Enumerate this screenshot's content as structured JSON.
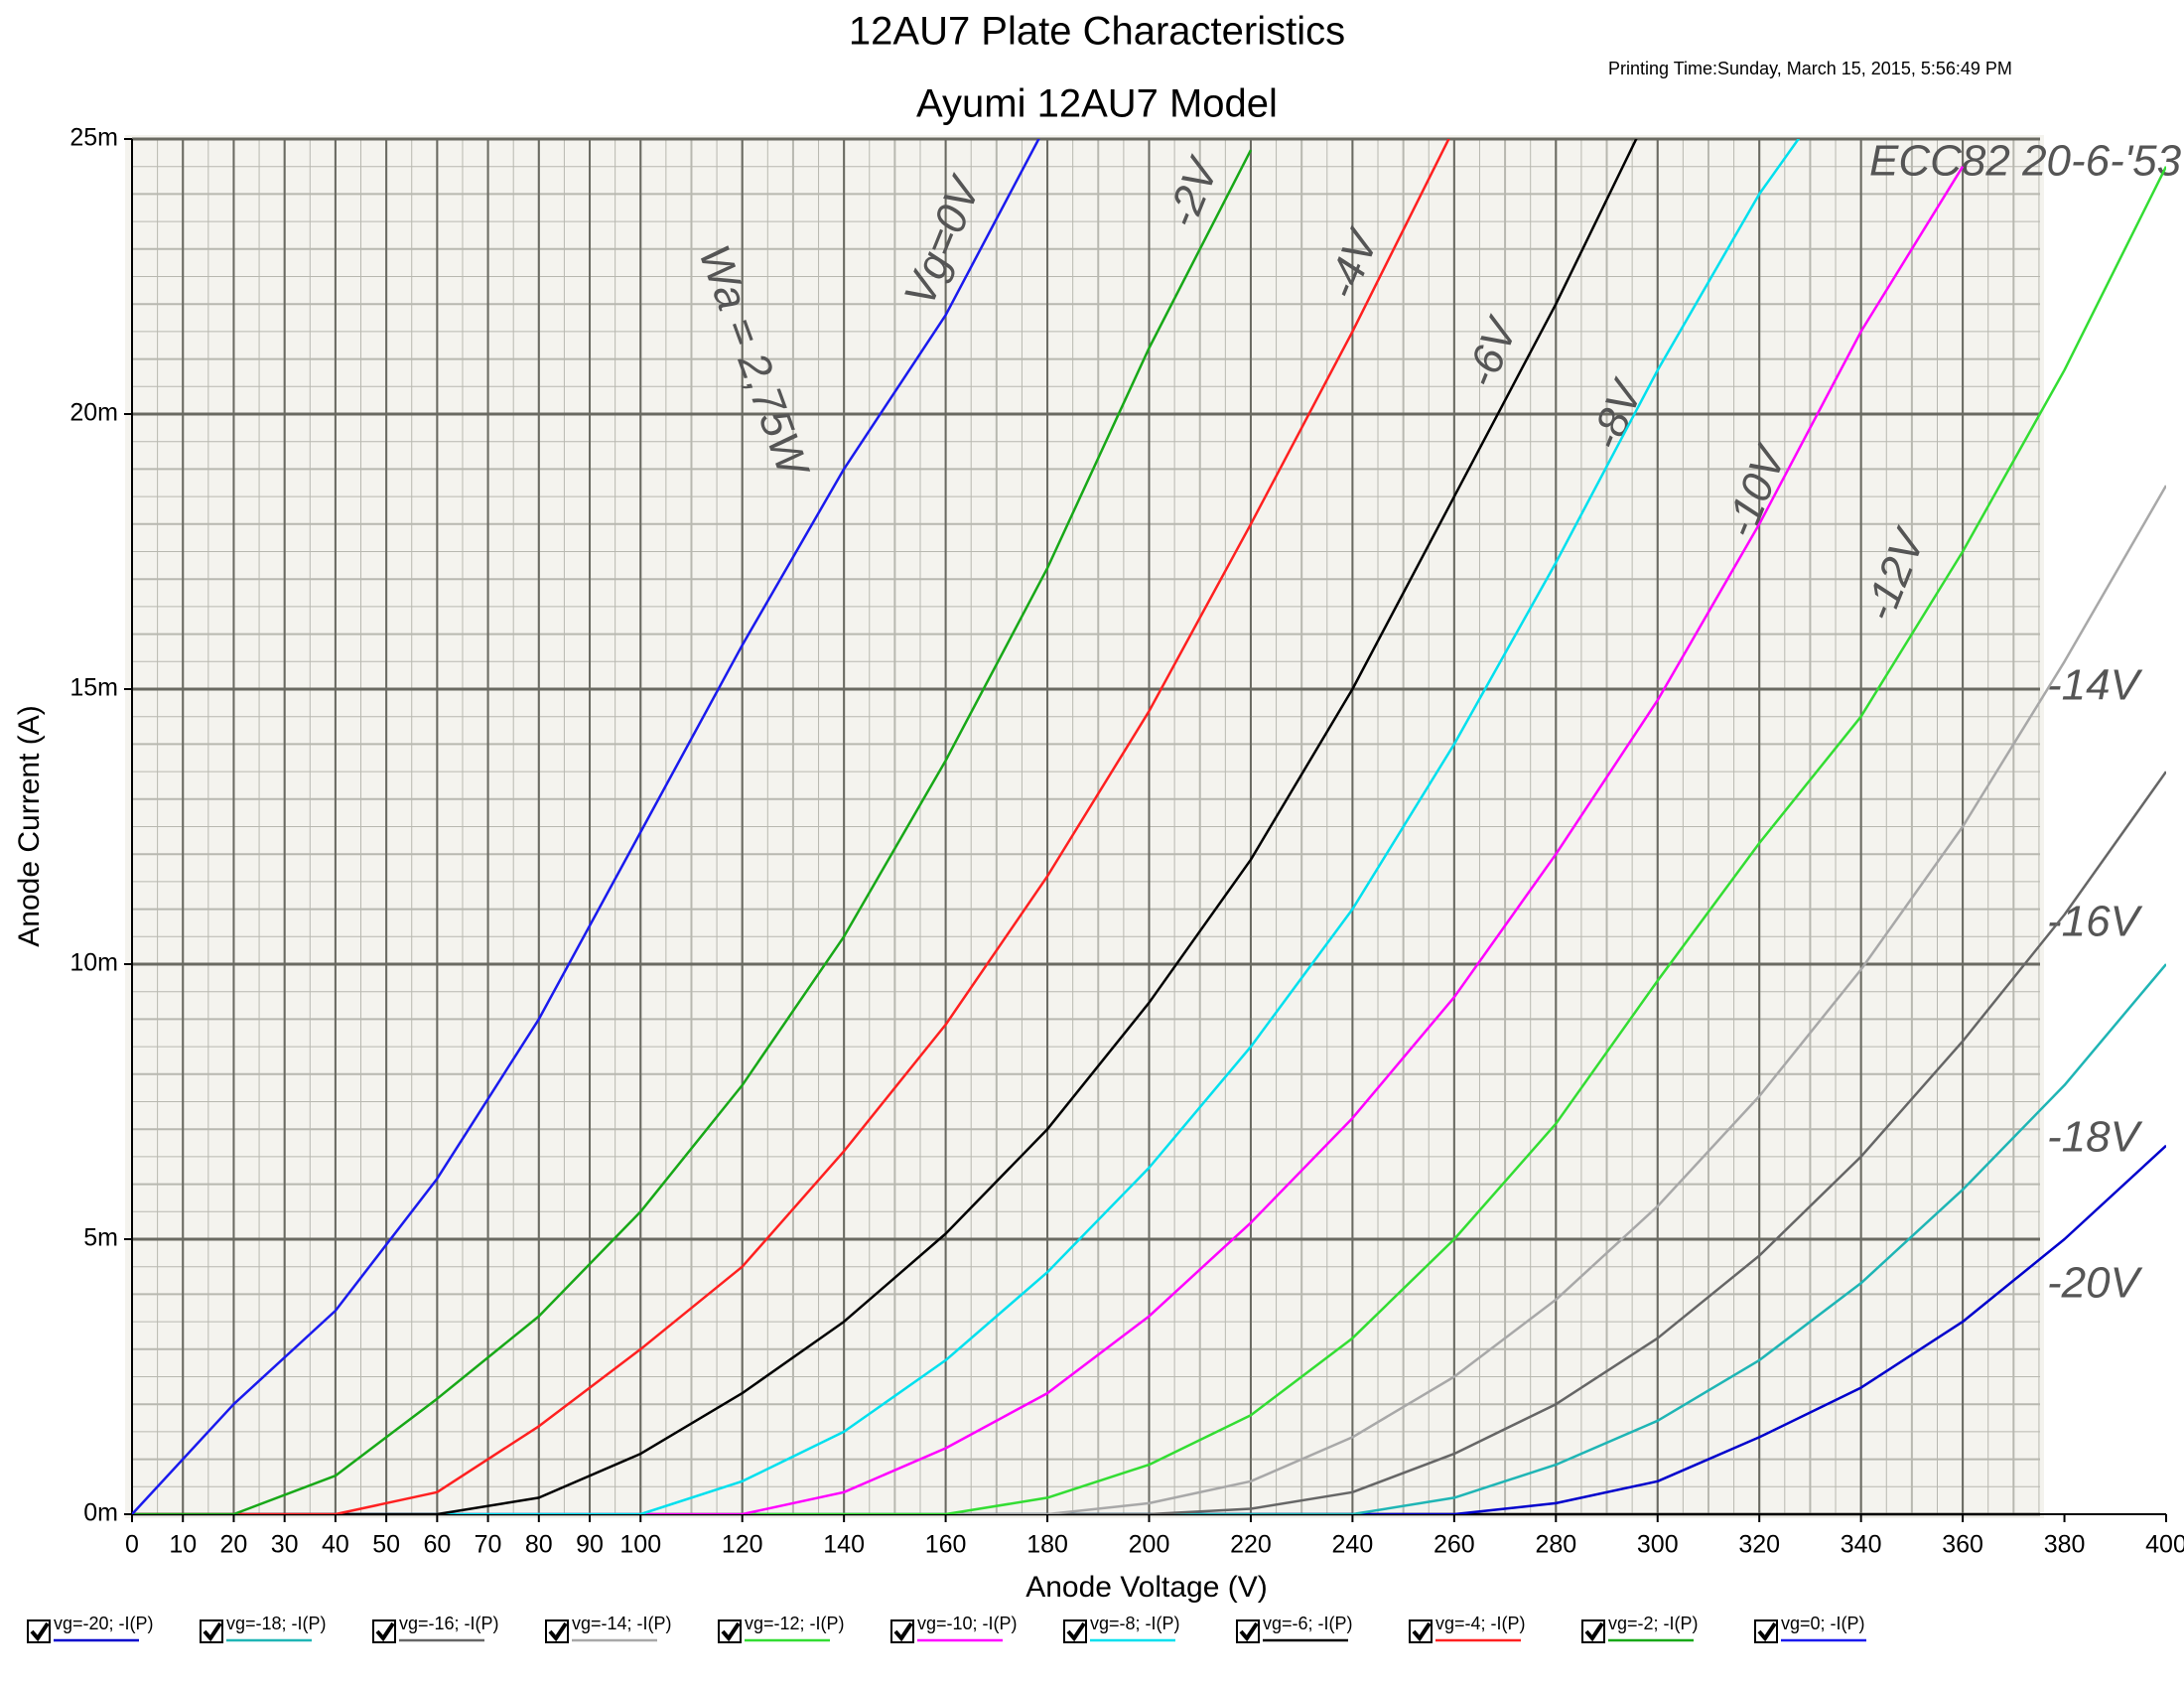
{
  "chart_data": {
    "type": "line",
    "title": "12AU7 Plate Characteristics",
    "subtitle": "Ayumi 12AU7 Model",
    "printing_time": "Printing Time:Sunday, March 15, 2015, 5:56:49 PM",
    "x_label": "Anode Voltage (V)",
    "y_label": "Anode Current (A)",
    "x": [
      0,
      20,
      40,
      60,
      80,
      100,
      120,
      140,
      160,
      180,
      200,
      220,
      240,
      260,
      280,
      300,
      320,
      340,
      360,
      380,
      400
    ],
    "series": [
      {
        "name": "vg=-20; -I(P)",
        "color": "#0000cc",
        "values": [
          0,
          0,
          0,
          0,
          0,
          0,
          0,
          0,
          0,
          0,
          0,
          0,
          0,
          0,
          0.0002,
          0.0006,
          0.0014,
          0.0023,
          0.0035,
          0.005,
          0.0067
        ]
      },
      {
        "name": "vg=-18; -I(P)",
        "color": "#1fb5b5",
        "values": [
          0,
          0,
          0,
          0,
          0,
          0,
          0,
          0,
          0,
          0,
          0,
          0,
          0,
          0.0003,
          0.0009,
          0.0017,
          0.0028,
          0.0042,
          0.0059,
          0.0078,
          0.01
        ]
      },
      {
        "name": "vg=-16; -I(P)",
        "color": "#666666",
        "values": [
          0,
          0,
          0,
          0,
          0,
          0,
          0,
          0,
          0,
          0,
          0,
          0.0001,
          0.0004,
          0.0011,
          0.002,
          0.0032,
          0.0047,
          0.0065,
          0.0086,
          0.0109,
          0.0135
        ]
      },
      {
        "name": "vg=-14; -I(P)",
        "color": "#a8a8a8",
        "values": [
          0,
          0,
          0,
          0,
          0,
          0,
          0,
          0,
          0,
          0,
          0.0002,
          0.0006,
          0.0014,
          0.0025,
          0.0039,
          0.0056,
          0.0076,
          0.0099,
          0.0125,
          0.0155,
          0.0187
        ]
      },
      {
        "name": "vg=-12; -I(P)",
        "color": "#33dd33",
        "values": [
          0,
          0,
          0,
          0,
          0,
          0,
          0,
          0,
          0,
          0.0003,
          0.0009,
          0.0018,
          0.0032,
          0.005,
          0.0071,
          0.0097,
          0.0122,
          0.0145,
          0.0175,
          0.0208,
          0.0245
        ]
      },
      {
        "name": "vg=-10; -I(P)",
        "color": "#ff00ff",
        "values": [
          0,
          0,
          0,
          0,
          0,
          0,
          0,
          0.0004,
          0.0012,
          0.0022,
          0.0036,
          0.0053,
          0.0072,
          0.0094,
          0.012,
          0.0148,
          0.018,
          0.0215,
          0.0245,
          null,
          null
        ]
      },
      {
        "name": "vg=-8; -I(P)",
        "color": "#00e0ee",
        "values": [
          0,
          0,
          0,
          0,
          0,
          0,
          0.0006,
          0.0015,
          0.0028,
          0.0044,
          0.0063,
          0.0085,
          0.011,
          0.014,
          0.0173,
          0.0208,
          0.024,
          0.0266,
          null,
          null,
          null
        ]
      },
      {
        "name": "vg=-6; -I(P)",
        "color": "#000000",
        "values": [
          0,
          0,
          0,
          0,
          0.0003,
          0.0011,
          0.0022,
          0.0035,
          0.0051,
          0.007,
          0.0093,
          0.0119,
          0.015,
          0.0185,
          0.022,
          0.0258,
          null,
          null,
          null,
          null,
          null
        ]
      },
      {
        "name": "vg=-4; -I(P)",
        "color": "#ff2020",
        "values": [
          0,
          0,
          0,
          0.0004,
          0.0016,
          0.003,
          0.0045,
          0.0066,
          0.0089,
          0.0116,
          0.0146,
          0.018,
          0.0215,
          0.0252,
          null,
          null,
          null,
          null,
          null,
          null,
          null
        ]
      },
      {
        "name": "vg=-2; -I(P)",
        "color": "#18a818",
        "values": [
          0,
          0,
          0.0007,
          0.0021,
          0.0036,
          0.0055,
          0.0078,
          0.0105,
          0.0137,
          0.0172,
          0.0212,
          0.0248,
          null,
          null,
          null,
          null,
          null,
          null,
          null,
          null,
          null
        ]
      },
      {
        "name": "vg=0; -I(P)",
        "color": "#1a1aee",
        "values": [
          0,
          0.002,
          0.0037,
          0.0061,
          0.009,
          0.0124,
          0.0158,
          0.019,
          0.0218,
          0.0253,
          null,
          null,
          null,
          null,
          null,
          null,
          null,
          null,
          null,
          null,
          null
        ]
      }
    ],
    "xlim": [
      0,
      400
    ],
    "xticks": [
      0,
      10,
      20,
      30,
      40,
      50,
      60,
      70,
      80,
      90,
      100,
      120,
      140,
      160,
      180,
      200,
      220,
      240,
      260,
      280,
      300,
      320,
      340,
      360,
      380,
      400
    ],
    "ylim": [
      0,
      0.025
    ],
    "yticks": [
      {
        "value": 0,
        "label": "0m"
      },
      {
        "value": 0.005,
        "label": "5m"
      },
      {
        "value": 0.01,
        "label": "10m"
      },
      {
        "value": 0.015,
        "label": "15m"
      },
      {
        "value": 0.02,
        "label": "20m"
      },
      {
        "value": 0.025,
        "label": "25m"
      }
    ],
    "grid": true,
    "annotations": [
      "Vg=0V",
      "-2V",
      "-4V",
      "-6V",
      "-8V",
      "-10V",
      "-12V",
      "-14V",
      "-16V",
      "-18V",
      "-20V",
      "Wa = 2,75W",
      "ECC82  20-6-'53"
    ]
  }
}
